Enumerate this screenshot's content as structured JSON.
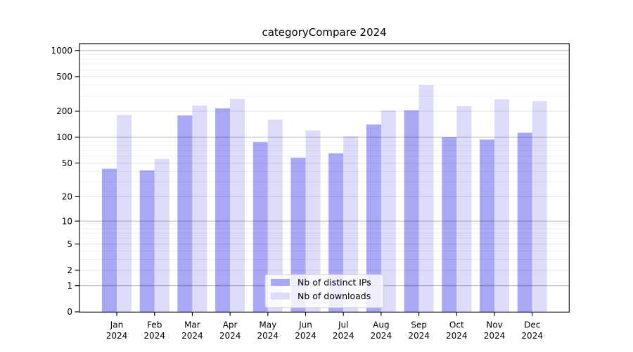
{
  "chart_data": {
    "type": "bar",
    "title": "categoryCompare 2024",
    "categories": [
      "Jan",
      "Feb",
      "Mar",
      "Apr",
      "May",
      "Jun",
      "Jul",
      "Aug",
      "Sep",
      "Oct",
      "Nov",
      "Dec"
    ],
    "x_year_label": "2024",
    "series": [
      {
        "name": "Nb of distinct IPs",
        "key": "distinct-ips",
        "color": "#a8a8f6",
        "values": [
          43,
          41,
          179,
          216,
          88,
          58,
          65,
          141,
          205,
          100,
          94,
          113
        ]
      },
      {
        "name": "Nb of downloads",
        "key": "downloads",
        "color": "#dcdcfa",
        "values": [
          181,
          56,
          232,
          277,
          160,
          120,
          103,
          205,
          400,
          230,
          274,
          261
        ]
      }
    ],
    "y_ticks": [
      0,
      1,
      2,
      5,
      10,
      20,
      50,
      100,
      200,
      500,
      1000
    ],
    "ylim": [
      0,
      1000
    ],
    "y_scale": "symlog",
    "grid": true,
    "legend_position": "bottom-center",
    "text_color": "#000000",
    "frame_color": "#000000",
    "major_grid_color": "rgba(0,0,0,0.28)",
    "minor_grid_color": "rgba(0,0,0,0.10)",
    "faint_grid_color": "rgba(0,0,0,0.055)",
    "legend_bg": "rgba(255,255,255,0.8)",
    "legend_border": "#cccccc"
  }
}
